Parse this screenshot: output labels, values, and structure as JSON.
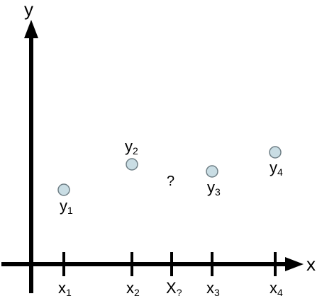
{
  "colors": {
    "axis": "#000000",
    "point_fill": "#c9dde4",
    "point_stroke": "#6f7f86"
  },
  "axes": {
    "x_label": "x",
    "y_label": "y"
  },
  "ticks": [
    {
      "main": "x",
      "sub": "1"
    },
    {
      "main": "x",
      "sub": "2"
    },
    {
      "main": "X",
      "sub": "?"
    },
    {
      "main": "x",
      "sub": "3"
    },
    {
      "main": "x",
      "sub": "4"
    }
  ],
  "points": [
    {
      "main": "y",
      "sub": "1",
      "tick": 0
    },
    {
      "main": "y",
      "sub": "2",
      "tick": 1
    },
    {
      "main": "y",
      "sub": "3",
      "tick": 3
    },
    {
      "main": "y",
      "sub": "4",
      "tick": 4
    }
  ],
  "unknown": {
    "text": "?",
    "tick": 2
  }
}
